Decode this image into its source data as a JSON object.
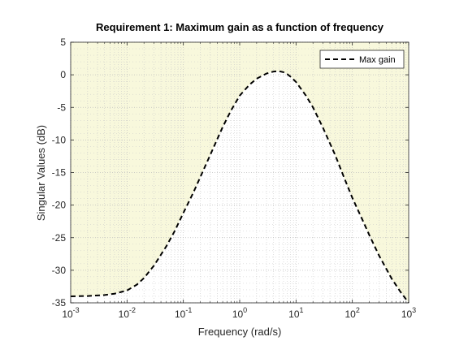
{
  "chart_data": {
    "type": "line",
    "title": "Requirement 1: Maximum gain as a function of frequency",
    "xlabel": "Frequency (rad/s)",
    "ylabel": "Singular Values (dB)",
    "xscale": "log",
    "xlim": [
      0.001,
      1000
    ],
    "ylim": [
      -35,
      5
    ],
    "x_ticks": [
      {
        "value": 0.001,
        "base": "10",
        "exp": "-3"
      },
      {
        "value": 0.01,
        "base": "10",
        "exp": "-2"
      },
      {
        "value": 0.1,
        "base": "10",
        "exp": "-1"
      },
      {
        "value": 1,
        "base": "10",
        "exp": "0"
      },
      {
        "value": 10,
        "base": "10",
        "exp": "1"
      },
      {
        "value": 100,
        "base": "10",
        "exp": "2"
      },
      {
        "value": 1000,
        "base": "10",
        "exp": "3"
      }
    ],
    "y_ticks": [
      {
        "value": 5,
        "label": "5"
      },
      {
        "value": 0,
        "label": "0"
      },
      {
        "value": -5,
        "label": "-5"
      },
      {
        "value": -10,
        "label": "-10"
      },
      {
        "value": -15,
        "label": "-15"
      },
      {
        "value": -20,
        "label": "-20"
      },
      {
        "value": -25,
        "label": "-25"
      },
      {
        "value": -30,
        "label": "-30"
      },
      {
        "value": -35,
        "label": "-35"
      }
    ],
    "grid": true,
    "minor_grid": true,
    "legend_position": "top-right",
    "shaded_region": "above-curve",
    "colors": {
      "shade": "#f8f8dc",
      "line": "#000000",
      "grid": "#c8c8c8",
      "axes": "#262626"
    },
    "series": [
      {
        "name": "Max gain",
        "style": "dashed",
        "x": [
          0.001,
          0.002,
          0.004,
          0.006,
          0.01,
          0.015,
          0.02,
          0.03,
          0.05,
          0.07,
          0.1,
          0.15,
          0.2,
          0.3,
          0.5,
          0.7,
          1,
          1.5,
          2,
          3,
          4,
          5,
          6,
          7,
          8,
          10,
          15,
          20,
          30,
          50,
          70,
          100,
          150,
          200,
          300,
          500,
          700,
          1000
        ],
        "y": [
          -34,
          -33.95,
          -33.8,
          -33.6,
          -33.1,
          -32.2,
          -31.2,
          -29.3,
          -26.3,
          -24,
          -21.2,
          -18.1,
          -15.7,
          -12.3,
          -8,
          -5.5,
          -3.2,
          -1.5,
          -0.6,
          0.2,
          0.5,
          0.55,
          0.4,
          0.1,
          -0.3,
          -1.1,
          -3.2,
          -5,
          -8.1,
          -12.4,
          -15.6,
          -18.9,
          -22.2,
          -24.6,
          -27.8,
          -31.3,
          -33.2,
          -35
        ]
      }
    ]
  }
}
